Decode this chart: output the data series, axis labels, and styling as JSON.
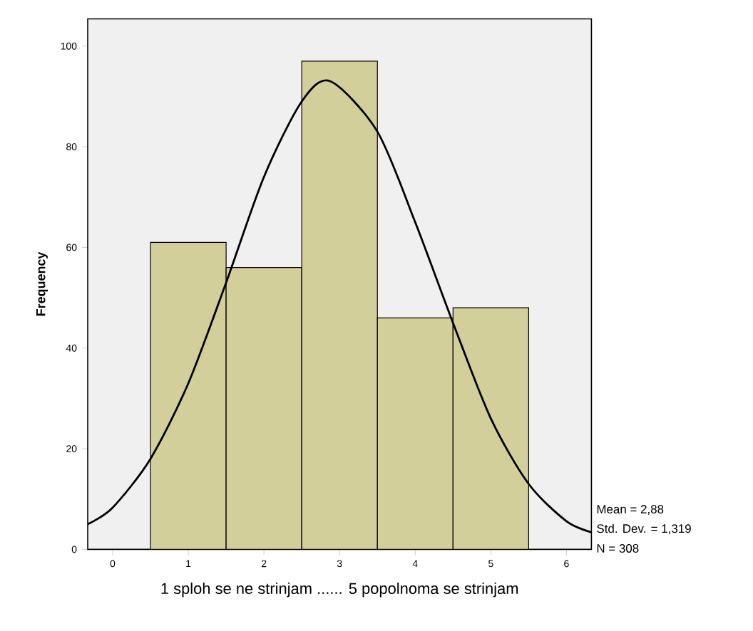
{
  "chart_data": {
    "type": "histogram",
    "xlabel": "1 sploh se ne strinjam ...... 5 popolnoma se strinjam",
    "ylabel": "Frequency",
    "bins": [
      0.5,
      1.5,
      2.5,
      3.5,
      4.5,
      5.5
    ],
    "values": [
      61,
      56,
      97,
      46,
      48
    ],
    "color": "#d3cf9b",
    "series": [
      {
        "type": "line",
        "color": "#000000",
        "x": [
          -0.33,
          0,
          0.5,
          1,
          1.5,
          2,
          2.5,
          2.88,
          3.5,
          4,
          4.5,
          5,
          5.5,
          6,
          6.33
        ],
        "values": [
          5,
          8.3,
          18,
          33,
          53,
          74,
          89,
          93,
          83,
          65,
          45,
          26,
          13,
          5.6,
          3.4
        ]
      }
    ],
    "xlim": [
      -0.33,
      6.33
    ],
    "ylim": [
      0,
      105.4
    ],
    "xticks": [
      0,
      1,
      2,
      3,
      4,
      5,
      6
    ],
    "yticks": [
      0,
      20,
      40,
      60,
      80,
      100
    ],
    "annotations": [
      "Mean = 2,88",
      "Std. Dev. = 1,319",
      "N = 308"
    ]
  }
}
